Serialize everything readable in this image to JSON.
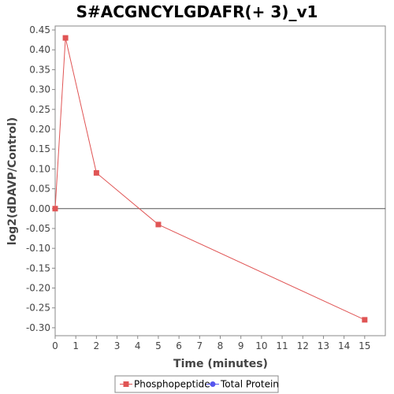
{
  "chart_data": {
    "type": "line",
    "title": "S#ACGNCYLGDAFR(+ 3)_v1",
    "xlabel": "Time (minutes)",
    "ylabel": "log2(dDAVP/Control)",
    "xlim": [
      0,
      16
    ],
    "ylim": [
      -0.32,
      0.46
    ],
    "x_ticks": [
      "0",
      "1",
      "2",
      "3",
      "4",
      "5",
      "6",
      "7",
      "8",
      "9",
      "10",
      "11",
      "12",
      "13",
      "14",
      "15"
    ],
    "y_ticks": [
      "0.45",
      "0.40",
      "0.35",
      "0.30",
      "0.25",
      "0.20",
      "0.15",
      "0.10",
      "0.05",
      "0.00",
      "-0.05",
      "-0.10",
      "-0.15",
      "-0.20",
      "-0.25",
      "-0.30"
    ],
    "zero_line": true,
    "grid": false,
    "legend_position": "bottom",
    "series": [
      {
        "name": "Phosphopeptide",
        "color": "#e05555",
        "marker": "square",
        "x": [
          0,
          0.5,
          2,
          5,
          15
        ],
        "y": [
          0.0,
          0.43,
          0.09,
          -0.04,
          -0.28
        ]
      },
      {
        "name": "Total Protein",
        "color": "#5555ee",
        "marker": "circle",
        "x": [],
        "y": []
      }
    ]
  }
}
